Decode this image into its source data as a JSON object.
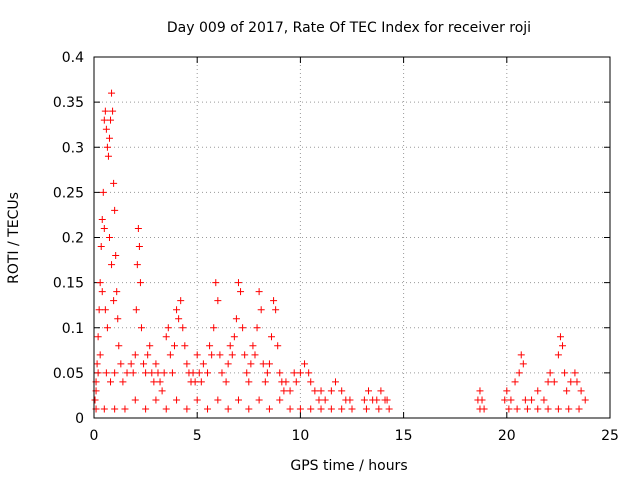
{
  "chart_data": {
    "type": "scatter",
    "title": "Day 009 of 2017, Rate Of TEC Index for receiver roji",
    "xlabel": "GPS time / hours",
    "ylabel": "ROTI / TECUs",
    "xlim": [
      0,
      25
    ],
    "ylim": [
      0,
      0.4
    ],
    "x_ticks": [
      0,
      5,
      10,
      15,
      20,
      25
    ],
    "y_ticks": [
      0,
      0.05,
      0.1,
      0.15,
      0.2,
      0.25,
      0.3,
      0.35,
      0.4
    ],
    "x_tick_labels": [
      "0",
      "5",
      "10",
      "15",
      "20",
      "25"
    ],
    "y_tick_labels": [
      "0",
      "0.05",
      "0.1",
      "0.15",
      "0.2",
      "0.25",
      "0.3",
      "0.35",
      "0.4"
    ],
    "grid": true,
    "marker": "plus",
    "color": "#ff0000",
    "series": [
      {
        "points": [
          [
            0.05,
            0.02
          ],
          [
            0.1,
            0.04
          ],
          [
            0.15,
            0.06
          ],
          [
            0.2,
            0.09
          ],
          [
            0.25,
            0.12
          ],
          [
            0.3,
            0.15
          ],
          [
            0.35,
            0.19
          ],
          [
            0.4,
            0.22
          ],
          [
            0.45,
            0.25
          ],
          [
            0.5,
            0.21
          ],
          [
            0.5,
            0.33
          ],
          [
            0.55,
            0.34
          ],
          [
            0.6,
            0.32
          ],
          [
            0.65,
            0.3
          ],
          [
            0.7,
            0.29
          ],
          [
            0.75,
            0.31
          ],
          [
            0.8,
            0.33
          ],
          [
            0.85,
            0.36
          ],
          [
            0.9,
            0.34
          ],
          [
            0.95,
            0.26
          ],
          [
            1.0,
            0.23
          ],
          [
            1.05,
            0.18
          ],
          [
            1.1,
            0.14
          ],
          [
            1.15,
            0.11
          ],
          [
            1.2,
            0.08
          ],
          [
            1.3,
            0.06
          ],
          [
            0.4,
            0.14
          ],
          [
            0.55,
            0.12
          ],
          [
            0.65,
            0.1
          ],
          [
            0.75,
            0.2
          ],
          [
            0.85,
            0.17
          ],
          [
            0.95,
            0.13
          ],
          [
            0.3,
            0.07
          ],
          [
            0.2,
            0.05
          ],
          [
            0.1,
            0.03
          ],
          [
            0.6,
            0.05
          ],
          [
            0.8,
            0.04
          ],
          [
            1.0,
            0.05
          ],
          [
            1.4,
            0.04
          ],
          [
            1.6,
            0.05
          ],
          [
            1.8,
            0.06
          ],
          [
            1.9,
            0.05
          ],
          [
            2.0,
            0.07
          ],
          [
            2.05,
            0.12
          ],
          [
            2.1,
            0.17
          ],
          [
            2.15,
            0.21
          ],
          [
            2.2,
            0.19
          ],
          [
            2.25,
            0.15
          ],
          [
            2.3,
            0.1
          ],
          [
            2.4,
            0.06
          ],
          [
            2.5,
            0.05
          ],
          [
            2.6,
            0.07
          ],
          [
            2.7,
            0.08
          ],
          [
            2.8,
            0.05
          ],
          [
            2.9,
            0.04
          ],
          [
            3.0,
            0.06
          ],
          [
            3.1,
            0.05
          ],
          [
            3.2,
            0.04
          ],
          [
            3.3,
            0.03
          ],
          [
            3.4,
            0.05
          ],
          [
            3.5,
            0.09
          ],
          [
            3.6,
            0.1
          ],
          [
            3.7,
            0.07
          ],
          [
            3.8,
            0.05
          ],
          [
            3.9,
            0.08
          ],
          [
            4.0,
            0.12
          ],
          [
            4.1,
            0.11
          ],
          [
            4.2,
            0.13
          ],
          [
            4.3,
            0.1
          ],
          [
            4.4,
            0.08
          ],
          [
            4.5,
            0.06
          ],
          [
            4.6,
            0.05
          ],
          [
            4.7,
            0.04
          ],
          [
            4.8,
            0.05
          ],
          [
            4.9,
            0.04
          ],
          [
            5.0,
            0.07
          ],
          [
            5.1,
            0.05
          ],
          [
            5.2,
            0.04
          ],
          [
            5.3,
            0.06
          ],
          [
            5.5,
            0.05
          ],
          [
            5.6,
            0.08
          ],
          [
            5.7,
            0.07
          ],
          [
            5.8,
            0.1
          ],
          [
            5.9,
            0.15
          ],
          [
            6.0,
            0.13
          ],
          [
            6.1,
            0.07
          ],
          [
            6.2,
            0.05
          ],
          [
            6.4,
            0.04
          ],
          [
            6.5,
            0.06
          ],
          [
            6.6,
            0.08
          ],
          [
            6.7,
            0.07
          ],
          [
            6.8,
            0.09
          ],
          [
            6.9,
            0.11
          ],
          [
            7.0,
            0.15
          ],
          [
            7.1,
            0.14
          ],
          [
            7.2,
            0.1
          ],
          [
            7.3,
            0.07
          ],
          [
            7.4,
            0.05
          ],
          [
            7.5,
            0.04
          ],
          [
            7.6,
            0.06
          ],
          [
            7.7,
            0.08
          ],
          [
            7.8,
            0.07
          ],
          [
            7.9,
            0.1
          ],
          [
            8.0,
            0.14
          ],
          [
            8.1,
            0.12
          ],
          [
            8.2,
            0.06
          ],
          [
            8.3,
            0.04
          ],
          [
            8.4,
            0.05
          ],
          [
            8.5,
            0.06
          ],
          [
            8.6,
            0.09
          ],
          [
            8.7,
            0.13
          ],
          [
            8.8,
            0.12
          ],
          [
            8.9,
            0.08
          ],
          [
            9.0,
            0.05
          ],
          [
            9.1,
            0.04
          ],
          [
            9.2,
            0.03
          ],
          [
            9.3,
            0.04
          ],
          [
            9.5,
            0.03
          ],
          [
            9.7,
            0.05
          ],
          [
            9.8,
            0.04
          ],
          [
            10.0,
            0.05
          ],
          [
            10.2,
            0.06
          ],
          [
            10.4,
            0.05
          ],
          [
            10.5,
            0.04
          ],
          [
            10.7,
            0.03
          ],
          [
            10.9,
            0.02
          ],
          [
            11.0,
            0.03
          ],
          [
            11.2,
            0.02
          ],
          [
            11.5,
            0.03
          ],
          [
            11.7,
            0.04
          ],
          [
            12.0,
            0.03
          ],
          [
            12.2,
            0.02
          ],
          [
            12.4,
            0.02
          ],
          [
            12.5,
            0.01
          ],
          [
            13.1,
            0.02
          ],
          [
            13.3,
            0.03
          ],
          [
            13.5,
            0.02
          ],
          [
            13.7,
            0.02
          ],
          [
            13.9,
            0.03
          ],
          [
            14.1,
            0.02
          ],
          [
            14.3,
            0.01
          ],
          [
            18.6,
            0.02
          ],
          [
            18.7,
            0.03
          ],
          [
            18.8,
            0.02
          ],
          [
            18.9,
            0.01
          ],
          [
            19.9,
            0.02
          ],
          [
            20.0,
            0.03
          ],
          [
            20.2,
            0.02
          ],
          [
            20.4,
            0.04
          ],
          [
            20.6,
            0.05
          ],
          [
            20.7,
            0.07
          ],
          [
            20.8,
            0.06
          ],
          [
            20.9,
            0.02
          ],
          [
            21.2,
            0.02
          ],
          [
            21.5,
            0.03
          ],
          [
            21.8,
            0.02
          ],
          [
            22.0,
            0.04
          ],
          [
            22.1,
            0.05
          ],
          [
            22.3,
            0.04
          ],
          [
            22.5,
            0.07
          ],
          [
            22.6,
            0.09
          ],
          [
            22.7,
            0.08
          ],
          [
            22.8,
            0.05
          ],
          [
            22.9,
            0.03
          ],
          [
            23.1,
            0.04
          ],
          [
            23.3,
            0.05
          ],
          [
            23.4,
            0.04
          ],
          [
            23.6,
            0.03
          ],
          [
            23.8,
            0.02
          ],
          [
            0.1,
            0.01
          ],
          [
            0.5,
            0.01
          ],
          [
            1.0,
            0.01
          ],
          [
            1.5,
            0.01
          ],
          [
            2.0,
            0.02
          ],
          [
            2.5,
            0.01
          ],
          [
            3.0,
            0.02
          ],
          [
            3.5,
            0.01
          ],
          [
            4.0,
            0.02
          ],
          [
            4.5,
            0.01
          ],
          [
            5.0,
            0.02
          ],
          [
            5.5,
            0.01
          ],
          [
            6.0,
            0.02
          ],
          [
            6.5,
            0.01
          ],
          [
            7.0,
            0.02
          ],
          [
            7.5,
            0.01
          ],
          [
            8.0,
            0.02
          ],
          [
            8.5,
            0.01
          ],
          [
            9.0,
            0.02
          ],
          [
            9.5,
            0.01
          ],
          [
            10.0,
            0.01
          ],
          [
            10.5,
            0.01
          ],
          [
            11.0,
            0.01
          ],
          [
            11.5,
            0.01
          ],
          [
            12.0,
            0.01
          ],
          [
            13.2,
            0.01
          ],
          [
            13.8,
            0.01
          ],
          [
            14.2,
            0.02
          ],
          [
            18.7,
            0.01
          ],
          [
            20.1,
            0.01
          ],
          [
            20.5,
            0.01
          ],
          [
            21.0,
            0.01
          ],
          [
            21.5,
            0.01
          ],
          [
            22.0,
            0.01
          ],
          [
            22.5,
            0.01
          ],
          [
            23.0,
            0.01
          ],
          [
            23.5,
            0.01
          ]
        ]
      }
    ]
  }
}
